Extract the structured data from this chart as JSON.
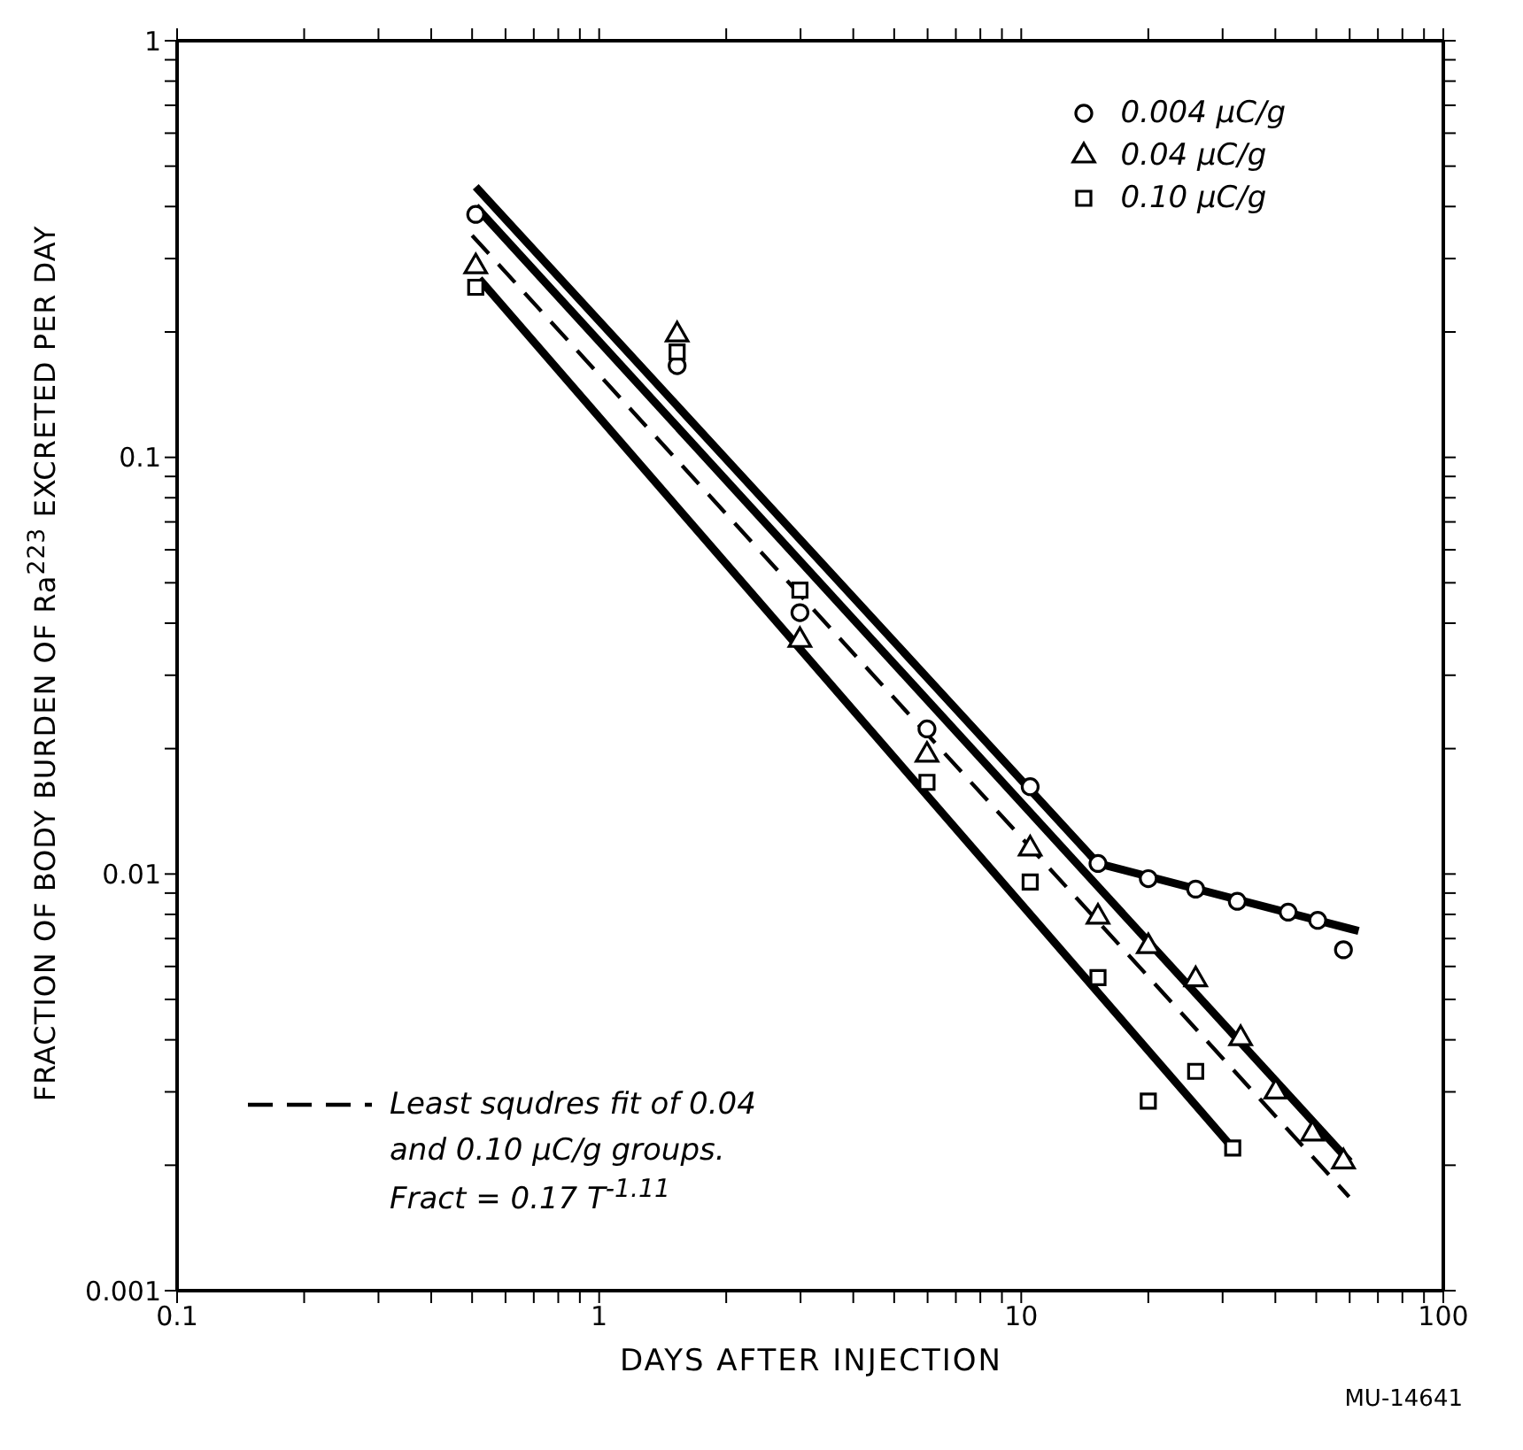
{
  "chart_data": {
    "type": "scatter",
    "xlabel": "DAYS AFTER INJECTION",
    "ylabel": "FRACTION OF BODY BURDEN OF Ra$^{223}$ EXCRETED PER DAY",
    "log": "xy",
    "legend": "top right",
    "xlim": [
      0.1,
      100
    ],
    "ylim": [
      0.001,
      1
    ],
    "xticks": [
      0.1,
      {
        "value": 0.2,
        "label": null
      },
      {
        "value": 0.3,
        "label": null
      },
      {
        "value": 0.4,
        "label": null
      },
      {
        "value": 0.5,
        "label": null
      },
      {
        "value": 0.6,
        "label": null
      },
      {
        "value": 0.7,
        "label": null
      },
      {
        "value": 0.8,
        "label": null
      },
      {
        "value": 0.9,
        "label": null
      },
      1,
      {
        "value": 2,
        "label": null
      },
      {
        "value": 3,
        "label": null
      },
      {
        "value": 4,
        "label": null
      },
      {
        "value": 5,
        "label": null
      },
      {
        "value": 6,
        "label": null
      },
      {
        "value": 7,
        "label": null
      },
      {
        "value": 8,
        "label": null
      },
      {
        "value": 9,
        "label": null
      },
      10,
      {
        "value": 20,
        "label": null
      },
      {
        "value": 30,
        "label": null
      },
      {
        "value": 40,
        "label": null
      },
      {
        "value": 50,
        "label": null
      },
      {
        "value": 60,
        "label": null
      },
      {
        "value": 70,
        "label": null
      },
      {
        "value": 80,
        "label": null
      },
      {
        "value": 90,
        "label": null
      },
      100
    ],
    "yticks": [
      0.001,
      {
        "value": 0.002,
        "label": null
      },
      {
        "value": 0.003,
        "label": null
      },
      {
        "value": 0.004,
        "label": null
      },
      {
        "value": 0.005,
        "label": null
      },
      {
        "value": 0.006,
        "label": null
      },
      {
        "value": 0.007,
        "label": null
      },
      {
        "value": 0.008,
        "label": null
      },
      {
        "value": 0.009,
        "label": null
      },
      0.01,
      {
        "value": 0.02,
        "label": null
      },
      {
        "value": 0.03,
        "label": null
      },
      {
        "value": 0.04,
        "label": null
      },
      {
        "value": 0.05,
        "label": null
      },
      {
        "value": 0.06,
        "label": null
      },
      {
        "value": 0.07,
        "label": null
      },
      {
        "value": 0.08,
        "label": null
      },
      {
        "value": 0.09,
        "label": null
      },
      0.1,
      {
        "value": 0.2,
        "label": null
      },
      {
        "value": 0.3,
        "label": null
      },
      {
        "value": 0.4,
        "label": null
      },
      {
        "value": 0.5,
        "label": null
      },
      {
        "value": 0.6,
        "label": null
      },
      {
        "value": 0.7,
        "label": null
      },
      {
        "value": 0.8,
        "label": null
      },
      {
        "value": 0.9,
        "label": null
      },
      1
    ],
    "series": [
      {
        "name": "0.004 μC/g",
        "marker": "circle",
        "color": "#000000",
        "x": [
          0.51,
          1.53,
          2.99,
          5.98,
          10.5,
          15.2,
          20,
          25.9,
          32.5,
          42.9,
          50.4,
          58
        ],
        "values": [
          0.383,
          0.166,
          0.0424,
          0.0223,
          0.0162,
          0.0106,
          0.00975,
          0.0092,
          0.0086,
          0.0081,
          0.00774,
          0.00658
        ]
      },
      {
        "name": "0.04 μC/g",
        "marker": "triangle",
        "color": "#000000",
        "x": [
          0.51,
          1.53,
          2.99,
          5.98,
          10.5,
          15.2,
          20,
          25.9,
          33.1,
          40.1,
          49,
          58
        ],
        "values": [
          0.287,
          0.197,
          0.0364,
          0.0193,
          0.0115,
          0.00789,
          0.0067,
          0.00558,
          0.00403,
          0.003,
          0.00238,
          0.00204
        ]
      },
      {
        "name": "0.10 μC/g",
        "marker": "square",
        "color": "#000000",
        "x": [
          0.51,
          1.53,
          2.99,
          5.98,
          10.5,
          15.2,
          20,
          25.9,
          31.7
        ],
        "values": [
          0.256,
          0.179,
          0.048,
          0.0166,
          0.00957,
          0.00564,
          0.00285,
          0.00336,
          0.0022
        ]
      },
      {
        "type": "line",
        "marker": "none",
        "line_style": "solid",
        "color": "#000000",
        "x": [
          0.51,
          15.2,
          63
        ],
        "values": [
          0.446,
          0.0106,
          0.0073
        ]
      },
      {
        "type": "line",
        "marker": "none",
        "line_style": "solid",
        "color": "#000000",
        "x": [
          0.51,
          60
        ],
        "values": [
          0.4,
          0.00204
        ]
      },
      {
        "type": "line",
        "marker": "none",
        "line_style": "solid",
        "color": "#000000",
        "x": [
          0.52,
          31.7
        ],
        "values": [
          0.268,
          0.0022
        ]
      },
      {
        "type": "line",
        "marker": "none",
        "line_style": "dashed",
        "color": "#000000",
        "x": [
          0.5,
          59.8
        ],
        "values": [
          0.341,
          0.00168
        ]
      }
    ],
    "annotations": [
      "Least squdres fit of 0.04",
      "and 0.10 μC/g groups.",
      "Fract = 0.17 T$^{-1.11}$",
      "MU-14641"
    ]
  }
}
